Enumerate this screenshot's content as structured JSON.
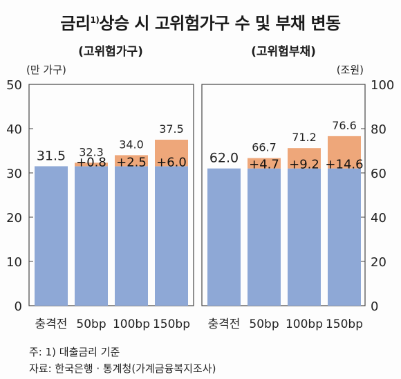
{
  "title_prefix": "금리",
  "title_sup": "1)",
  "title_suffix": "상승 시 고위험가구 수 및 부채 변동",
  "footnote": "주: 1) 대출금리 기준",
  "source": "자료: 한국은행 · 통계청(가계금융복지조사)",
  "colors": {
    "base": "#8ea8d6",
    "increase": "#eea77a",
    "frame": "#444444"
  },
  "chart_data": [
    {
      "type": "bar",
      "stacked": true,
      "subtitle": "(고위험가구)",
      "ylabel": "(만 가구)",
      "ylim": [
        0,
        50
      ],
      "yticks": [
        0,
        10,
        20,
        30,
        40,
        50
      ],
      "categories": [
        "충격전",
        "50bp",
        "100bp",
        "150bp"
      ],
      "base_values": [
        31.5,
        31.5,
        31.5,
        31.5
      ],
      "increase_values": [
        0,
        0.8,
        2.5,
        6.0
      ],
      "total_labels": [
        "31.5",
        "32.3",
        "34.0",
        "37.5"
      ],
      "increase_labels": [
        "",
        "+0.8",
        "+2.5",
        "+6.0"
      ]
    },
    {
      "type": "bar",
      "stacked": true,
      "subtitle": "(고위험부채)",
      "ylabel": "(조원)",
      "ylim": [
        0,
        100
      ],
      "yticks": [
        0,
        20,
        40,
        60,
        80,
        100
      ],
      "categories": [
        "충격전",
        "50bp",
        "100bp",
        "150bp"
      ],
      "base_values": [
        62.0,
        62.0,
        62.0,
        62.0
      ],
      "increase_values": [
        0,
        4.7,
        9.2,
        14.6
      ],
      "total_labels": [
        "62.0",
        "66.7",
        "71.2",
        "76.6"
      ],
      "increase_labels": [
        "",
        "+4.7",
        "+9.2",
        "+14.6"
      ]
    }
  ]
}
